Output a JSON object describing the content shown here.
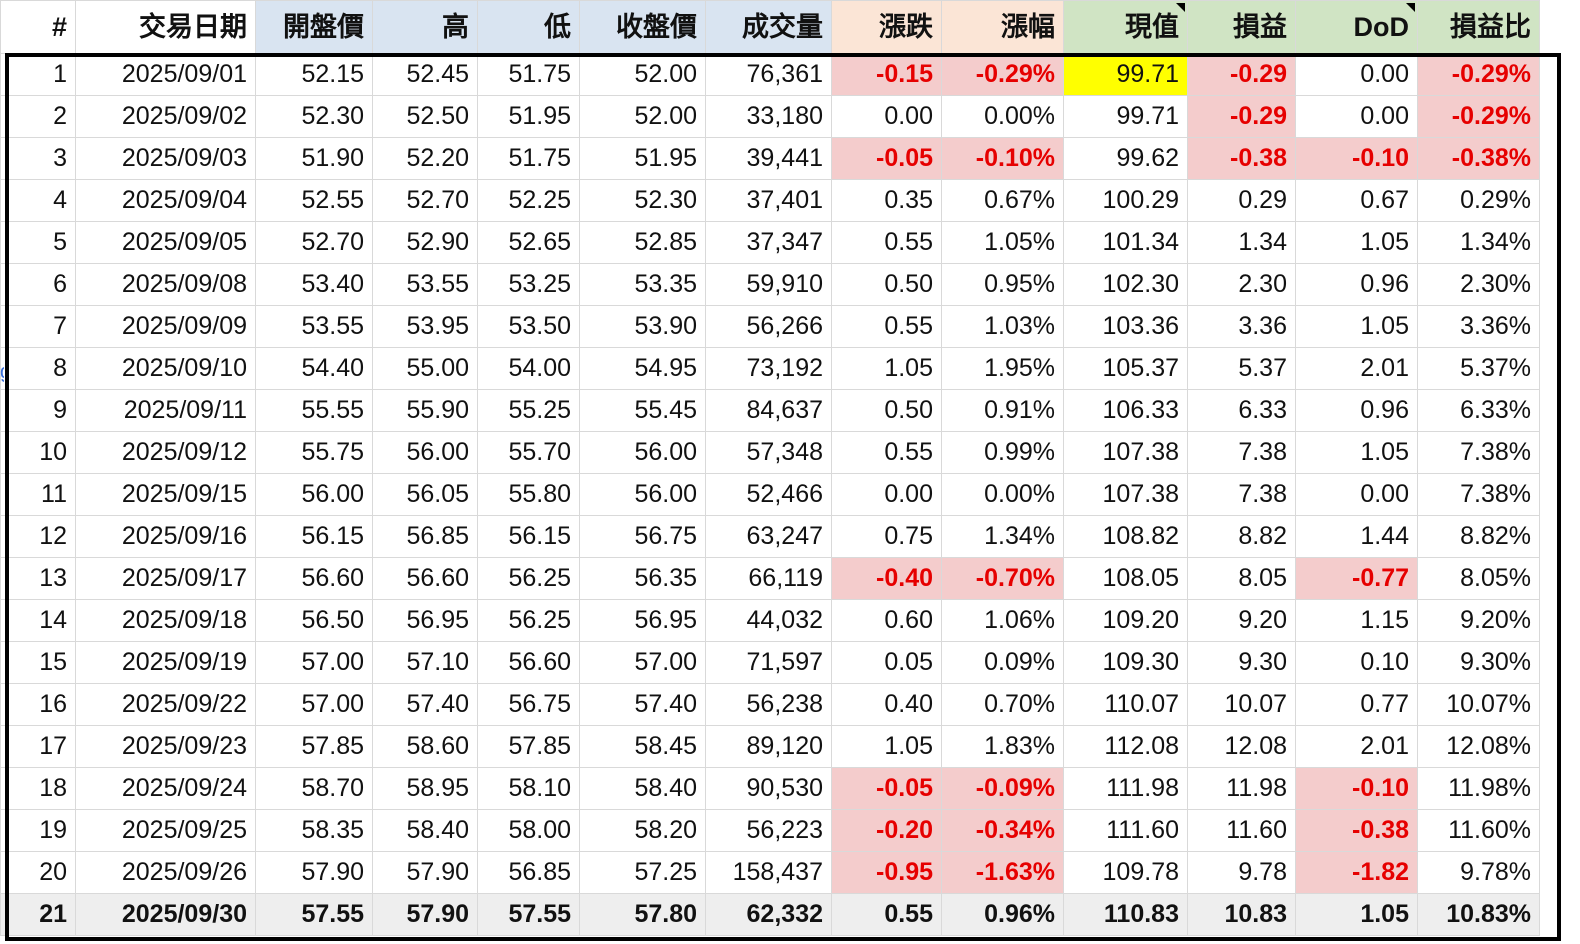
{
  "headers": [
    "#",
    "交易日期",
    "開盤價",
    "高",
    "低",
    "收盤價",
    "成交量",
    "漲跌",
    "漲幅",
    "現值",
    "損益",
    "DoD",
    "損益比"
  ],
  "rows": [
    [
      "1",
      "2025/09/01",
      "52.15",
      "52.45",
      "51.75",
      "52.00",
      "76,361",
      "-0.15",
      "-0.29%",
      "99.71",
      "-0.29",
      "0.00",
      "-0.29%"
    ],
    [
      "2",
      "2025/09/02",
      "52.30",
      "52.50",
      "51.95",
      "52.00",
      "33,180",
      "0.00",
      "0.00%",
      "99.71",
      "-0.29",
      "0.00",
      "-0.29%"
    ],
    [
      "3",
      "2025/09/03",
      "51.90",
      "52.20",
      "51.75",
      "51.95",
      "39,441",
      "-0.05",
      "-0.10%",
      "99.62",
      "-0.38",
      "-0.10",
      "-0.38%"
    ],
    [
      "4",
      "2025/09/04",
      "52.55",
      "52.70",
      "52.25",
      "52.30",
      "37,401",
      "0.35",
      "0.67%",
      "100.29",
      "0.29",
      "0.67",
      "0.29%"
    ],
    [
      "5",
      "2025/09/05",
      "52.70",
      "52.90",
      "52.65",
      "52.85",
      "37,347",
      "0.55",
      "1.05%",
      "101.34",
      "1.34",
      "1.05",
      "1.34%"
    ],
    [
      "6",
      "2025/09/08",
      "53.40",
      "53.55",
      "53.25",
      "53.35",
      "59,910",
      "0.50",
      "0.95%",
      "102.30",
      "2.30",
      "0.96",
      "2.30%"
    ],
    [
      "7",
      "2025/09/09",
      "53.55",
      "53.95",
      "53.50",
      "53.90",
      "56,266",
      "0.55",
      "1.03%",
      "103.36",
      "3.36",
      "1.05",
      "3.36%"
    ],
    [
      "8",
      "2025/09/10",
      "54.40",
      "55.00",
      "54.00",
      "54.95",
      "73,192",
      "1.05",
      "1.95%",
      "105.37",
      "5.37",
      "2.01",
      "5.37%"
    ],
    [
      "9",
      "2025/09/11",
      "55.55",
      "55.90",
      "55.25",
      "55.45",
      "84,637",
      "0.50",
      "0.91%",
      "106.33",
      "6.33",
      "0.96",
      "6.33%"
    ],
    [
      "10",
      "2025/09/12",
      "55.75",
      "56.00",
      "55.70",
      "56.00",
      "57,348",
      "0.55",
      "0.99%",
      "107.38",
      "7.38",
      "1.05",
      "7.38%"
    ],
    [
      "11",
      "2025/09/15",
      "56.00",
      "56.05",
      "55.80",
      "56.00",
      "52,466",
      "0.00",
      "0.00%",
      "107.38",
      "7.38",
      "0.00",
      "7.38%"
    ],
    [
      "12",
      "2025/09/16",
      "56.15",
      "56.85",
      "56.15",
      "56.75",
      "63,247",
      "0.75",
      "1.34%",
      "108.82",
      "8.82",
      "1.44",
      "8.82%"
    ],
    [
      "13",
      "2025/09/17",
      "56.60",
      "56.60",
      "56.25",
      "56.35",
      "66,119",
      "-0.40",
      "-0.70%",
      "108.05",
      "8.05",
      "-0.77",
      "8.05%"
    ],
    [
      "14",
      "2025/09/18",
      "56.50",
      "56.95",
      "56.25",
      "56.95",
      "44,032",
      "0.60",
      "1.06%",
      "109.20",
      "9.20",
      "1.15",
      "9.20%"
    ],
    [
      "15",
      "2025/09/19",
      "57.00",
      "57.10",
      "56.60",
      "57.00",
      "71,597",
      "0.05",
      "0.09%",
      "109.30",
      "9.30",
      "0.10",
      "9.30%"
    ],
    [
      "16",
      "2025/09/22",
      "57.00",
      "57.40",
      "56.75",
      "57.40",
      "56,238",
      "0.40",
      "0.70%",
      "110.07",
      "10.07",
      "0.77",
      "10.07%"
    ],
    [
      "17",
      "2025/09/23",
      "57.85",
      "58.60",
      "57.85",
      "58.45",
      "89,120",
      "1.05",
      "1.83%",
      "112.08",
      "12.08",
      "2.01",
      "12.08%"
    ],
    [
      "18",
      "2025/09/24",
      "58.70",
      "58.95",
      "58.10",
      "58.40",
      "90,530",
      "-0.05",
      "-0.09%",
      "111.98",
      "11.98",
      "-0.10",
      "11.98%"
    ],
    [
      "19",
      "2025/09/25",
      "58.35",
      "58.40",
      "58.00",
      "58.20",
      "56,223",
      "-0.20",
      "-0.34%",
      "111.60",
      "11.60",
      "-0.38",
      "11.60%"
    ],
    [
      "20",
      "2025/09/26",
      "57.90",
      "57.90",
      "56.85",
      "57.25",
      "158,437",
      "-0.95",
      "-1.63%",
      "109.78",
      "9.78",
      "-1.82",
      "9.78%"
    ],
    [
      "21",
      "2025/09/30",
      "57.55",
      "57.90",
      "57.55",
      "57.80",
      "62,332",
      "0.55",
      "0.96%",
      "110.83",
      "10.83",
      "1.05",
      "10.83%"
    ]
  ],
  "colors": {
    "header_blue": "#d9e4f1",
    "header_peach": "#fbe5d6",
    "header_green": "#d0e4c4",
    "negative_text": "#e60000",
    "negative_fill": "#f4cccc",
    "highlight_yellow": "#ffff00",
    "total_row_fill": "#eeeeee"
  }
}
